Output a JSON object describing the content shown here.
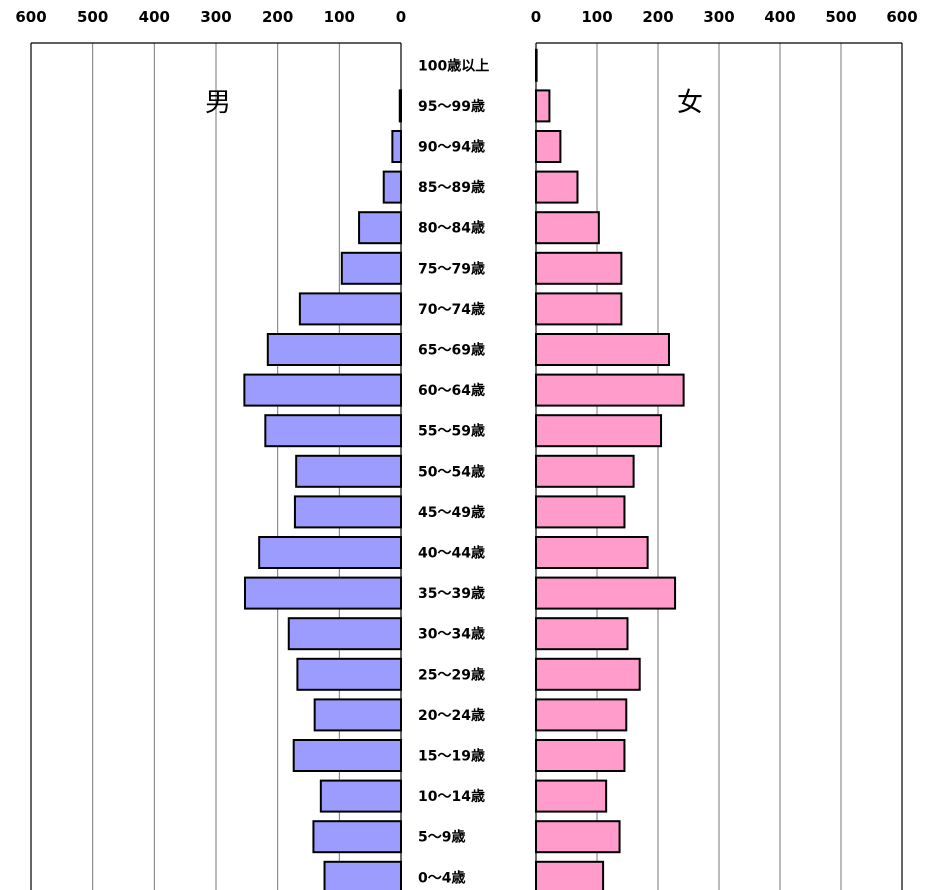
{
  "colors": {
    "male": "#9c9cff",
    "female": "#ff9ccc"
  },
  "chart_data": {
    "type": "bar",
    "orientation": "population-pyramid",
    "categories": [
      "100歳以上",
      "95～99歳",
      "90～94歳",
      "85～89歳",
      "80～84歳",
      "75～79歳",
      "70～74歳",
      "65～69歳",
      "60～64歳",
      "55～59歳",
      "50～54歳",
      "45～49歳",
      "40～44歳",
      "35～39歳",
      "30～34歳",
      "25～29歳",
      "20～24歳",
      "15～19歳",
      "10～14歳",
      "5～9歳",
      "0～4歳"
    ],
    "series": [
      {
        "name": "男",
        "values": [
          0,
          2,
          14,
          28,
          68,
          96,
          164,
          216,
          254,
          220,
          170,
          172,
          230,
          253,
          182,
          168,
          140,
          174,
          130,
          142,
          124
        ]
      },
      {
        "name": "女",
        "values": [
          1,
          22,
          40,
          68,
          103,
          140,
          140,
          218,
          242,
          205,
          160,
          145,
          183,
          228,
          150,
          170,
          148,
          145,
          115,
          137,
          110
        ]
      }
    ],
    "xlim": [
      0,
      600
    ],
    "xticks": [
      "600",
      "500",
      "400",
      "300",
      "200",
      "100",
      "0"
    ],
    "xticks_right": [
      "0",
      "100",
      "200",
      "300",
      "400",
      "500",
      "600"
    ],
    "grid": true,
    "legend": "none"
  }
}
